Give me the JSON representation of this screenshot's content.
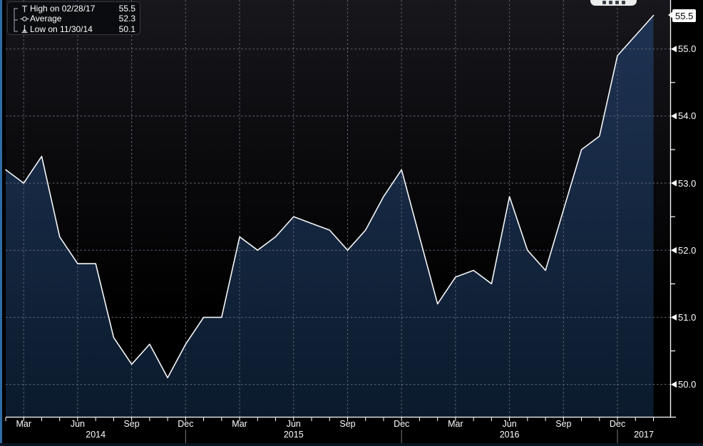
{
  "legend": {
    "items": [
      {
        "icon": "high-whisker-icon",
        "label": "High on 02/28/17",
        "value": "55.5"
      },
      {
        "icon": "average-icon",
        "label": "Average",
        "value": "52.3"
      },
      {
        "icon": "low-whisker-icon",
        "label": "Low on 11/30/14",
        "value": "50.1"
      }
    ]
  },
  "last_value_tag": "55.5",
  "chart_data": {
    "type": "area",
    "title": "",
    "x": [
      "2014-02",
      "2014-03",
      "2014-04",
      "2014-05",
      "2014-06",
      "2014-07",
      "2014-08",
      "2014-09",
      "2014-10",
      "2014-11",
      "2014-12",
      "2015-01",
      "2015-02",
      "2015-03",
      "2015-04",
      "2015-05",
      "2015-06",
      "2015-07",
      "2015-08",
      "2015-09",
      "2015-10",
      "2015-11",
      "2015-12",
      "2016-01",
      "2016-02",
      "2016-03",
      "2016-04",
      "2016-05",
      "2016-06",
      "2016-07",
      "2016-08",
      "2016-09",
      "2016-10",
      "2016-11",
      "2016-12",
      "2017-01",
      "2017-02"
    ],
    "values": [
      53.2,
      53.0,
      53.4,
      52.2,
      51.8,
      51.8,
      50.7,
      50.3,
      50.6,
      50.1,
      50.6,
      51.0,
      51.0,
      52.2,
      52.0,
      52.2,
      52.5,
      52.4,
      52.3,
      52.0,
      52.3,
      52.8,
      53.2,
      52.2,
      51.2,
      51.6,
      51.7,
      51.5,
      52.8,
      52.0,
      51.7,
      52.6,
      53.5,
      53.7,
      54.9,
      55.2,
      55.5
    ],
    "stats": {
      "high": {
        "date": "02/28/17",
        "value": 55.5
      },
      "average": 52.3,
      "low": {
        "date": "11/30/14",
        "value": 50.1
      }
    },
    "ylim": [
      49.5,
      55.7
    ],
    "y_tick_values": [
      55.0,
      54.0,
      53.0,
      52.0,
      51.0,
      50.0
    ],
    "y_tick_labels": [
      "55.0",
      "54.0",
      "53.0",
      "52.0",
      "51.0",
      "50.0"
    ],
    "y_minor_ticks": [
      54.5,
      53.5,
      52.5,
      51.5,
      50.5
    ],
    "month_names": {
      "3": "Mar",
      "6": "Jun",
      "9": "Sep",
      "12": "Dec"
    },
    "year_labels": [
      "2014",
      "2015",
      "2016",
      "2017"
    ],
    "grid": "dashed",
    "legend_position": "top-left"
  },
  "colors": {
    "area_fill_top": "#1f3354",
    "area_fill_bottom": "#0b1b2d",
    "line": "#f5f6f7",
    "grid": "#626875",
    "frame": "#ffffff",
    "background_top": "#17171c",
    "background": "#000000",
    "window_edge": "#2e6da6",
    "year_separator": "#7a7a7a"
  }
}
